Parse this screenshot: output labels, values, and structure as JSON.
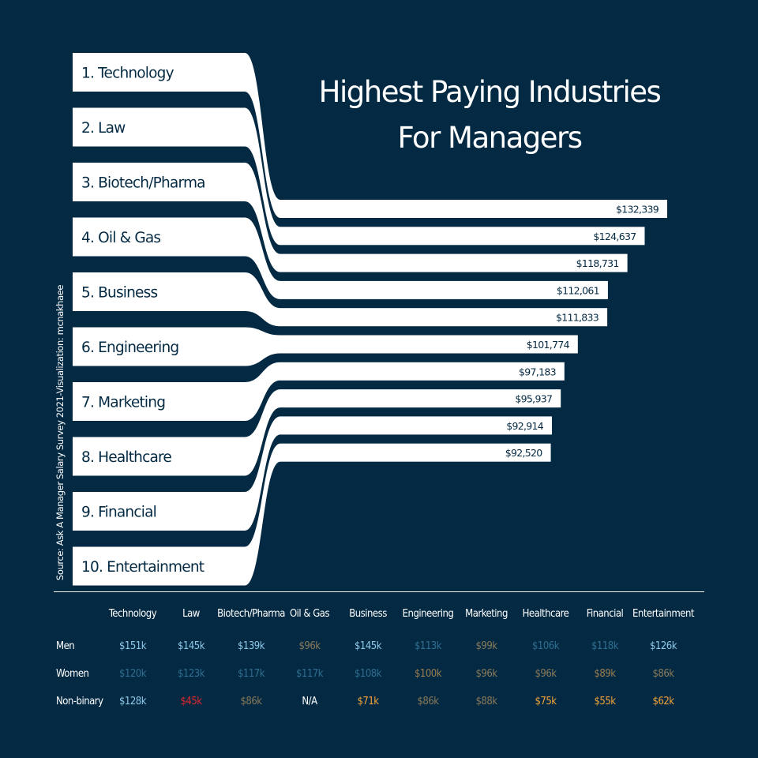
{
  "title_line1": "Highest Paying Industries",
  "title_line2": "For Managers",
  "source": "Source: Ask A Manager Salary Survey 2021-Visualization: mcnakhaee",
  "chart_data": {
    "type": "bar",
    "categories": [
      "1. Technology",
      "2. Law",
      "3. Biotech/Pharma",
      "4. Oil & Gas",
      "5. Business",
      "6. Engineering",
      "7. Marketing",
      "8. Healthcare",
      "9. Financial",
      "10. Entertainment"
    ],
    "values": [
      132339,
      124637,
      118731,
      112061,
      111833,
      101774,
      97183,
      95937,
      92914,
      92520
    ],
    "value_labels": [
      "$132,339",
      "$124,637",
      "$118,731",
      "$112,061",
      "$111,833",
      "$101,774",
      "$97,183",
      "$95,937",
      "$92,914",
      "$92,520"
    ],
    "colors": {
      "background": "#042a43",
      "bars": "#ffffff",
      "text_dark": "#042a43"
    }
  },
  "table": {
    "columns": [
      "Technology",
      "Law",
      "Biotech/Pharma",
      "Oil & Gas",
      "Business",
      "Engineering",
      "Marketing",
      "Healthcare",
      "Financial",
      "Entertainment"
    ],
    "rows": [
      {
        "label": "Men",
        "values": [
          "$151k",
          "$145k",
          "$139k",
          "$96k",
          "$145k",
          "$113k",
          "$99k",
          "$106k",
          "$118k",
          "$126k"
        ],
        "colors": [
          "#8ec9ea",
          "#8ec9ea",
          "#8ec9ea",
          "#8a7a59",
          "#8ec9ea",
          "#2f6e91",
          "#8a7a59",
          "#2f6e91",
          "#2f6e91",
          "#8ec9ea"
        ]
      },
      {
        "label": "Women",
        "values": [
          "$120k",
          "$123k",
          "$117k",
          "$117k",
          "$108k",
          "$100k",
          "$96k",
          "$96k",
          "$89k",
          "$86k"
        ],
        "colors": [
          "#2f6e91",
          "#2f6e91",
          "#2f6e91",
          "#2f6e91",
          "#2f6e91",
          "#9b7c4f",
          "#8a7a59",
          "#8a7a59",
          "#9b7c4f",
          "#8a7a59"
        ]
      },
      {
        "label": "Non-binary",
        "values": [
          "$128k",
          "$45k",
          "$86k",
          "N/A",
          "$71k",
          "$86k",
          "$88k",
          "$75k",
          "$55k",
          "$62k"
        ],
        "colors": [
          "#8ec9ea",
          "#e0262f",
          "#8a7a59",
          "#ffffff",
          "#f2a43a",
          "#8a7a59",
          "#8a7a59",
          "#f2a43a",
          "#f2a43a",
          "#f2a43a"
        ]
      }
    ]
  }
}
